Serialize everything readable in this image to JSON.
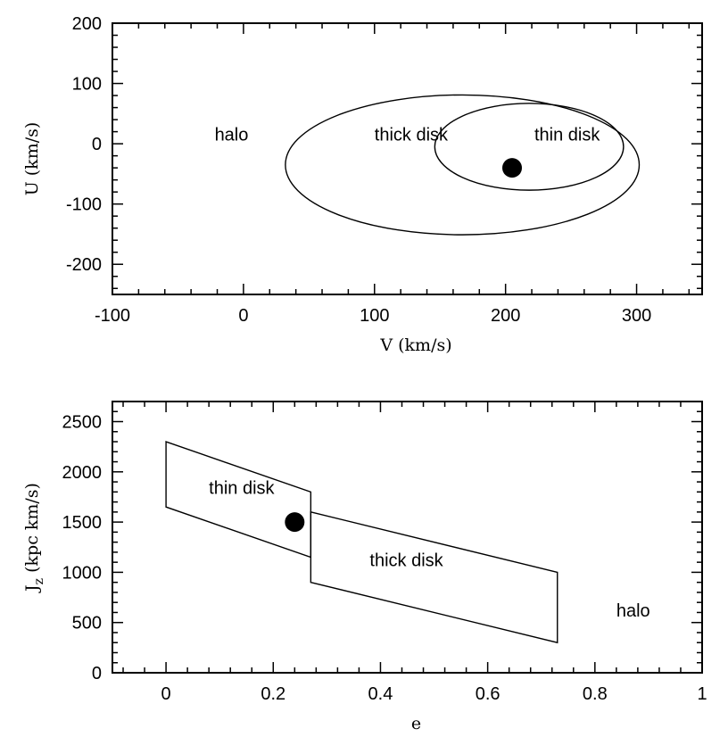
{
  "chart_data": [
    {
      "type": "scatter",
      "xlabel": "V (km/s)",
      "ylabel": "U (km/s)",
      "xlim": [
        -100,
        350
      ],
      "ylim": [
        -250,
        200
      ],
      "xticks": [
        -100,
        0,
        100,
        200,
        300
      ],
      "yticks": [
        -200,
        -100,
        0,
        100,
        200
      ],
      "regions": [
        {
          "label": "thick disk",
          "shape": "ellipse",
          "center": [
            167,
            -35
          ],
          "rx_data": 135,
          "ry_data": 116,
          "label_at": [
            100,
            5
          ]
        },
        {
          "label": "thin disk",
          "shape": "ellipse",
          "center": [
            218,
            -5
          ],
          "rx_data": 72,
          "ry_data": 72,
          "label_at": [
            222,
            5
          ]
        },
        {
          "label": "halo",
          "shape": "text",
          "label_at": [
            -22,
            5
          ]
        }
      ],
      "points": [
        {
          "x": 205,
          "y": -40
        }
      ]
    },
    {
      "type": "scatter",
      "xlabel": "e",
      "ylabel": "Jz (kpc km/s)",
      "ylabel_main": "J",
      "ylabel_sub": "z",
      "ylabel_rest": " (kpc km/s)",
      "xlim": [
        -0.1,
        1.0
      ],
      "ylim": [
        0,
        2700
      ],
      "xticks": [
        "0",
        "0.2",
        "0.4",
        "0.6",
        "0.8",
        "1"
      ],
      "xtick_values": [
        0,
        0.2,
        0.4,
        0.6,
        0.8,
        1.0
      ],
      "yticks": [
        0,
        500,
        1000,
        1500,
        2000,
        2500
      ],
      "regions": [
        {
          "label": "thin disk",
          "shape": "polygon",
          "vertices": [
            [
              0,
              2300
            ],
            [
              0.27,
              1800
            ],
            [
              0.27,
              1150
            ],
            [
              0,
              1650
            ]
          ],
          "label_at": [
            0.08,
            1780
          ]
        },
        {
          "label": "thick disk",
          "shape": "polygon",
          "vertices": [
            [
              0.27,
              1600
            ],
            [
              0.73,
              1000
            ],
            [
              0.73,
              300
            ],
            [
              0.27,
              900
            ]
          ],
          "label_at": [
            0.38,
            1060
          ]
        },
        {
          "label": "halo",
          "shape": "text",
          "label_at": [
            0.84,
            560
          ]
        }
      ],
      "points": [
        {
          "x": 0.24,
          "y": 1500
        }
      ]
    }
  ]
}
